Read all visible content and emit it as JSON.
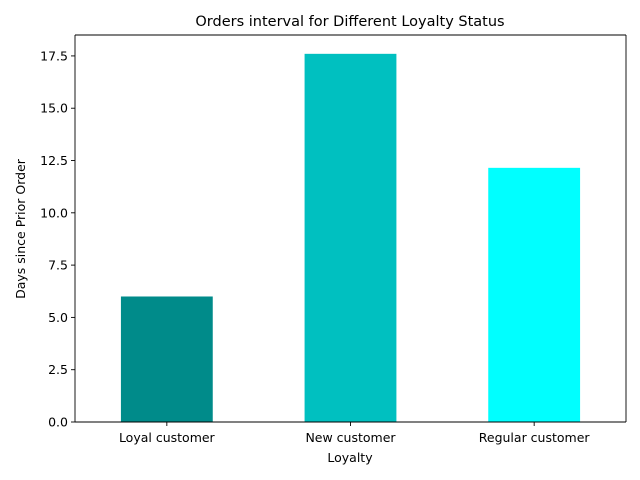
{
  "chart_data": {
    "type": "bar",
    "title": "Orders interval for Different Loyalty Status",
    "xlabel": "Loyalty",
    "ylabel": "Days since Prior Order",
    "categories": [
      "Loyal customer",
      "New customer",
      "Regular customer"
    ],
    "values": [
      6.0,
      17.6,
      12.15
    ],
    "bar_colors": [
      "#008b8a",
      "#00c0c0",
      "#00ffff"
    ],
    "ylim": [
      0,
      18.5
    ],
    "yticks": [
      0.0,
      2.5,
      5.0,
      7.5,
      10.0,
      12.5,
      15.0,
      17.5
    ],
    "ytick_labels": [
      "0.0",
      "2.5",
      "5.0",
      "7.5",
      "10.0",
      "12.5",
      "15.0",
      "17.5"
    ],
    "grid": false,
    "legend": "none"
  }
}
